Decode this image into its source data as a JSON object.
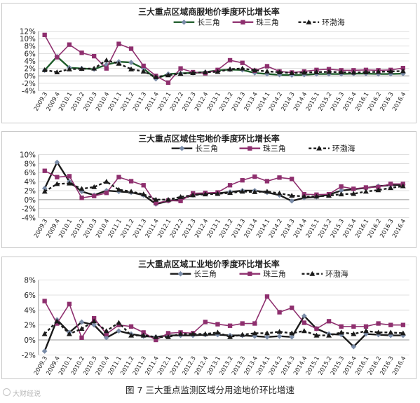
{
  "chart_data": [
    {
      "type": "line",
      "title": "三大重点区域商服地价季度环比增长率",
      "categories": [
        "2009.3",
        "2009.4",
        "2010.1",
        "2010.2",
        "2010.3",
        "2010.4",
        "2011.1",
        "2011.2",
        "2011.3",
        "2011.4",
        "2012.1",
        "2012.2",
        "2012.3",
        "2012.4",
        "2013.1",
        "2013.2",
        "2013.3",
        "2013.4",
        "2014.1",
        "2014.2",
        "2014.3",
        "2014.4",
        "2015.1",
        "2015.2",
        "2015.3",
        "2015.4",
        "2016.1",
        "2016.2",
        "2016.3",
        "2016.4"
      ],
      "ylim": [
        -4,
        12
      ],
      "yticks": [
        "-4%",
        "-2%",
        "0%",
        "2%",
        "4%",
        "6%",
        "8%",
        "10%",
        "12%"
      ],
      "grid": true,
      "legend": "top",
      "series": [
        {
          "name": "长三角",
          "color": "#1e5c2a",
          "marker": "diamond",
          "values": [
            1.5,
            5.2,
            2.2,
            2.0,
            1.8,
            3.0,
            3.8,
            3.6,
            2.0,
            -0.8,
            0.5,
            0.7,
            0.8,
            1.0,
            1.5,
            1.7,
            1.6,
            0.8,
            0.5,
            0.3,
            0.2,
            0.3,
            0.5,
            0.5,
            0.5,
            0.6,
            0.6,
            0.5,
            0.5,
            0.6
          ]
        },
        {
          "name": "珠三角",
          "color": "#8e2f6e",
          "marker": "square",
          "values": [
            11.0,
            5.0,
            8.4,
            6.2,
            5.3,
            2.0,
            8.6,
            7.3,
            2.7,
            0.0,
            -1.8,
            2.0,
            1.0,
            0.7,
            1.6,
            4.2,
            3.5,
            1.4,
            2.6,
            1.2,
            0.9,
            1.2,
            1.6,
            1.8,
            1.5,
            1.5,
            1.6,
            1.5,
            1.6,
            2.1
          ]
        },
        {
          "name": "环渤海",
          "color": "#1a1a1a",
          "marker": "triangle",
          "values": [
            1.6,
            1.0,
            1.8,
            1.9,
            2.0,
            4.2,
            3.3,
            1.8,
            1.2,
            -0.3,
            0.2,
            0.6,
            0.8,
            1.0,
            1.1,
            1.8,
            2.0,
            1.5,
            1.2,
            1.0,
            0.8,
            0.9,
            1.0,
            1.1,
            1.0,
            0.9,
            1.0,
            1.1,
            1.2,
            1.3
          ]
        }
      ]
    },
    {
      "type": "line",
      "title": "三大重点区域住宅地价季度环比增长率",
      "categories": [
        "2009.3",
        "2009.4",
        "2010.1",
        "2010.2",
        "2010.3",
        "2010.4",
        "2011.1",
        "2011.2",
        "2011.3",
        "2011.4",
        "2012.1",
        "2012.2",
        "2012.3",
        "2012.4",
        "2013.1",
        "2013.2",
        "2013.3",
        "2013.4",
        "2014.1",
        "2014.2",
        "2014.3",
        "2014.4",
        "2015.1",
        "2015.2",
        "2015.3",
        "2015.4",
        "2016.1",
        "2016.2",
        "2016.3",
        "2016.4"
      ],
      "ylim": [
        -4,
        10
      ],
      "yticks": [
        "-4%",
        "-2%",
        "0%",
        "2%",
        "4%",
        "6%",
        "8%",
        "10%"
      ],
      "grid": true,
      "legend": "top",
      "series": [
        {
          "name": "长三角",
          "color": "#1a1a1a",
          "marker": "diamond",
          "values": [
            2.5,
            8.3,
            4.0,
            1.8,
            1.0,
            2.0,
            1.8,
            1.6,
            1.0,
            -1.0,
            -0.3,
            0.1,
            1.0,
            1.4,
            1.4,
            1.7,
            2.0,
            2.0,
            1.6,
            1.0,
            -0.3,
            0.4,
            0.6,
            1.1,
            2.0,
            2.3,
            2.6,
            3.0,
            3.2,
            3.3
          ]
        },
        {
          "name": "珠三角",
          "color": "#8e2f6e",
          "marker": "square",
          "values": [
            6.4,
            5.0,
            5.2,
            0.4,
            0.8,
            1.5,
            5.0,
            4.1,
            3.2,
            -0.8,
            -0.2,
            -0.3,
            1.4,
            1.5,
            1.6,
            3.2,
            4.3,
            5.1,
            4.1,
            4.9,
            4.6,
            1.2,
            1.1,
            1.2,
            2.9,
            2.4,
            2.7,
            2.8,
            3.5,
            3.5
          ]
        },
        {
          "name": "环渤海",
          "color": "#1a1a1a",
          "marker": "triangle",
          "values": [
            1.8,
            3.5,
            3.6,
            2.4,
            2.8,
            4.0,
            2.2,
            1.8,
            1.2,
            0.0,
            0.0,
            0.6,
            1.0,
            1.2,
            1.3,
            1.5,
            1.8,
            1.7,
            1.8,
            1.4,
            0.9,
            0.7,
            0.7,
            0.9,
            1.2,
            1.3,
            1.8,
            2.1,
            2.6,
            3.0
          ]
        }
      ]
    },
    {
      "type": "line",
      "title": "三大重点区域工业地价季度环比增长率",
      "categories": [
        "2009.3",
        "2009.4",
        "2010.1",
        "2010.2",
        "2010.3",
        "2010.4",
        "2011.1",
        "2011.2",
        "2011.3",
        "2011.4",
        "2012.1",
        "2012.2",
        "2012.3",
        "2012.4",
        "2013.1",
        "2013.2",
        "2013.3",
        "2013.4",
        "2014.1",
        "2014.2",
        "2014.3",
        "2014.4",
        "2015.1",
        "2015.2",
        "2015.3",
        "2015.4",
        "2016.1",
        "2016.2",
        "2016.3",
        "2016.4"
      ],
      "ylim": [
        -2,
        8
      ],
      "yticks": [
        "-2%",
        "0%",
        "2%",
        "4%",
        "6%",
        "8%"
      ],
      "grid": true,
      "legend": "top",
      "series": [
        {
          "name": "长三角",
          "color": "#1a1a1a",
          "marker": "diamond",
          "values": [
            -1.5,
            2.7,
            1.0,
            2.4,
            2.0,
            0.3,
            1.2,
            0.8,
            0.5,
            0.4,
            0.6,
            0.6,
            0.6,
            0.7,
            0.7,
            0.6,
            0.6,
            0.5,
            0.4,
            0.5,
            0.4,
            3.2,
            1.5,
            0.8,
            0.7,
            -0.9,
            0.8,
            0.7,
            0.6,
            0.6
          ]
        },
        {
          "name": "珠三角",
          "color": "#8e2f6e",
          "marker": "square",
          "values": [
            5.2,
            2.2,
            4.8,
            0.3,
            2.9,
            0.8,
            2.0,
            1.8,
            1.0,
            0.0,
            0.9,
            1.0,
            0.9,
            2.4,
            2.1,
            1.9,
            2.2,
            2.2,
            5.8,
            3.7,
            4.3,
            2.3,
            1.5,
            2.5,
            1.8,
            1.8,
            1.8,
            2.2,
            2.0,
            2.0
          ]
        },
        {
          "name": "环渤海",
          "color": "#1a1a1a",
          "marker": "triangle",
          "values": [
            0.8,
            2.5,
            0.8,
            1.5,
            2.5,
            1.2,
            2.3,
            0.6,
            0.6,
            0.4,
            0.4,
            0.8,
            0.8,
            0.8,
            1.0,
            0.4,
            0.7,
            0.9,
            0.9,
            1.1,
            0.9,
            1.2,
            0.6,
            0.6,
            1.0,
            0.8,
            1.2,
            1.0,
            1.0,
            0.9
          ]
        }
      ]
    }
  ],
  "figure": {
    "caption": "图 7 三大重点监测区域分用途地价环比增速",
    "watermark": "大财经说"
  }
}
